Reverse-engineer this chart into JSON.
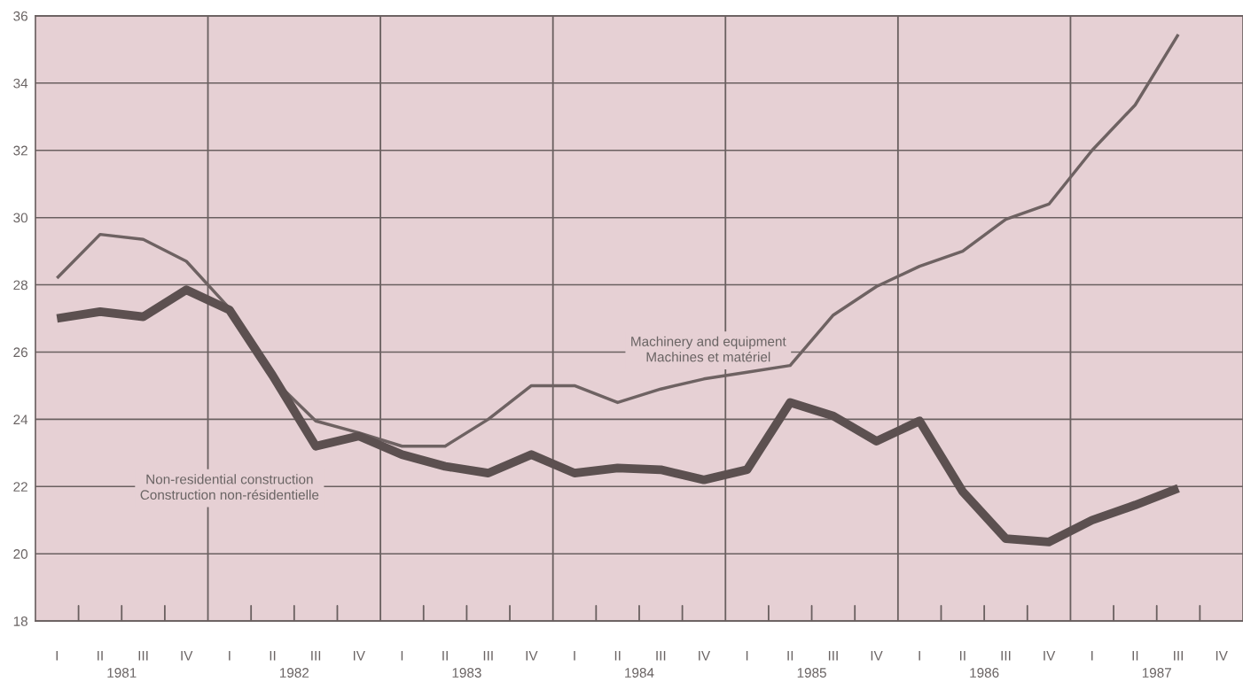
{
  "chart_data": {
    "type": "line",
    "categories": [
      "I",
      "II",
      "III",
      "IV",
      "I",
      "II",
      "III",
      "IV",
      "I",
      "II",
      "III",
      "IV",
      "I",
      "II",
      "III",
      "IV",
      "I",
      "II",
      "III",
      "IV",
      "I",
      "II",
      "III",
      "IV",
      "I",
      "II",
      "III",
      "IV"
    ],
    "series": [
      {
        "color": "#6e6262",
        "values": [
          28.2,
          29.5,
          29.35,
          28.7,
          27.3,
          25.2,
          23.95,
          23.6,
          23.2,
          23.2,
          24.0,
          25.0,
          25.0,
          24.5,
          24.9,
          25.2,
          25.4,
          25.6,
          27.1,
          27.95,
          28.55,
          29.0,
          29.95,
          30.4,
          32.0,
          33.35,
          35.45,
          null
        ]
      },
      {
        "color": "#5c5050",
        "values": [
          27.0,
          27.2,
          27.05,
          27.85,
          27.25,
          25.3,
          23.2,
          23.5,
          22.95,
          22.6,
          22.4,
          22.95,
          22.4,
          22.55,
          22.5,
          22.2,
          22.5,
          24.5,
          24.1,
          23.35,
          23.95,
          21.85,
          20.45,
          20.35,
          21.0,
          21.45,
          21.95,
          null
        ]
      }
    ],
    "ylim": [
      18,
      36
    ],
    "yticks": [
      18,
      20,
      22,
      24,
      26,
      28,
      30,
      32,
      34,
      36
    ],
    "grid": true,
    "annotations": [
      "Machinery and equipment\nMachines et matériel",
      "Non-residential construction\nConstruction non-résidentielle",
      "1981",
      "1982",
      "1983",
      "1984",
      "1985",
      "1986",
      "1987"
    ]
  }
}
